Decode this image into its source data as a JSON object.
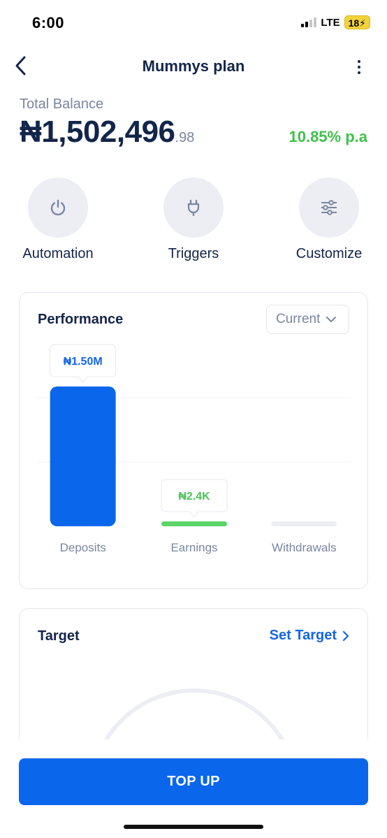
{
  "status_bar": {
    "time": "6:00",
    "network": "LTE",
    "battery": "18"
  },
  "header": {
    "title": "Mummys plan"
  },
  "balance": {
    "label": "Total Balance",
    "main": "₦1,502,496",
    "cents": ".98",
    "rate": "10.85% p.a"
  },
  "actions": [
    {
      "label": "Automation",
      "icon": "power-icon"
    },
    {
      "label": "Triggers",
      "icon": "plug-icon"
    },
    {
      "label": "Customize",
      "icon": "sliders-icon"
    }
  ],
  "performance": {
    "title": "Performance",
    "period": "Current"
  },
  "chart_data": {
    "type": "bar",
    "categories": [
      "Deposits",
      "Earnings",
      "Withdrawals"
    ],
    "values": [
      1502496,
      2400,
      0
    ],
    "value_labels": [
      "₦1.50M",
      "₦2.4K",
      ""
    ],
    "colors": [
      "#0a67eb",
      "#5bd46a",
      "#eceef3"
    ],
    "grid": true
  },
  "target": {
    "title": "Target",
    "action_label": "Set Target"
  },
  "footer": {
    "cta_label": "TOP UP"
  },
  "colors": {
    "primary": "#0a67eb",
    "navy": "#13254a",
    "green": "#3ec24a",
    "muted": "#7a86a0"
  }
}
